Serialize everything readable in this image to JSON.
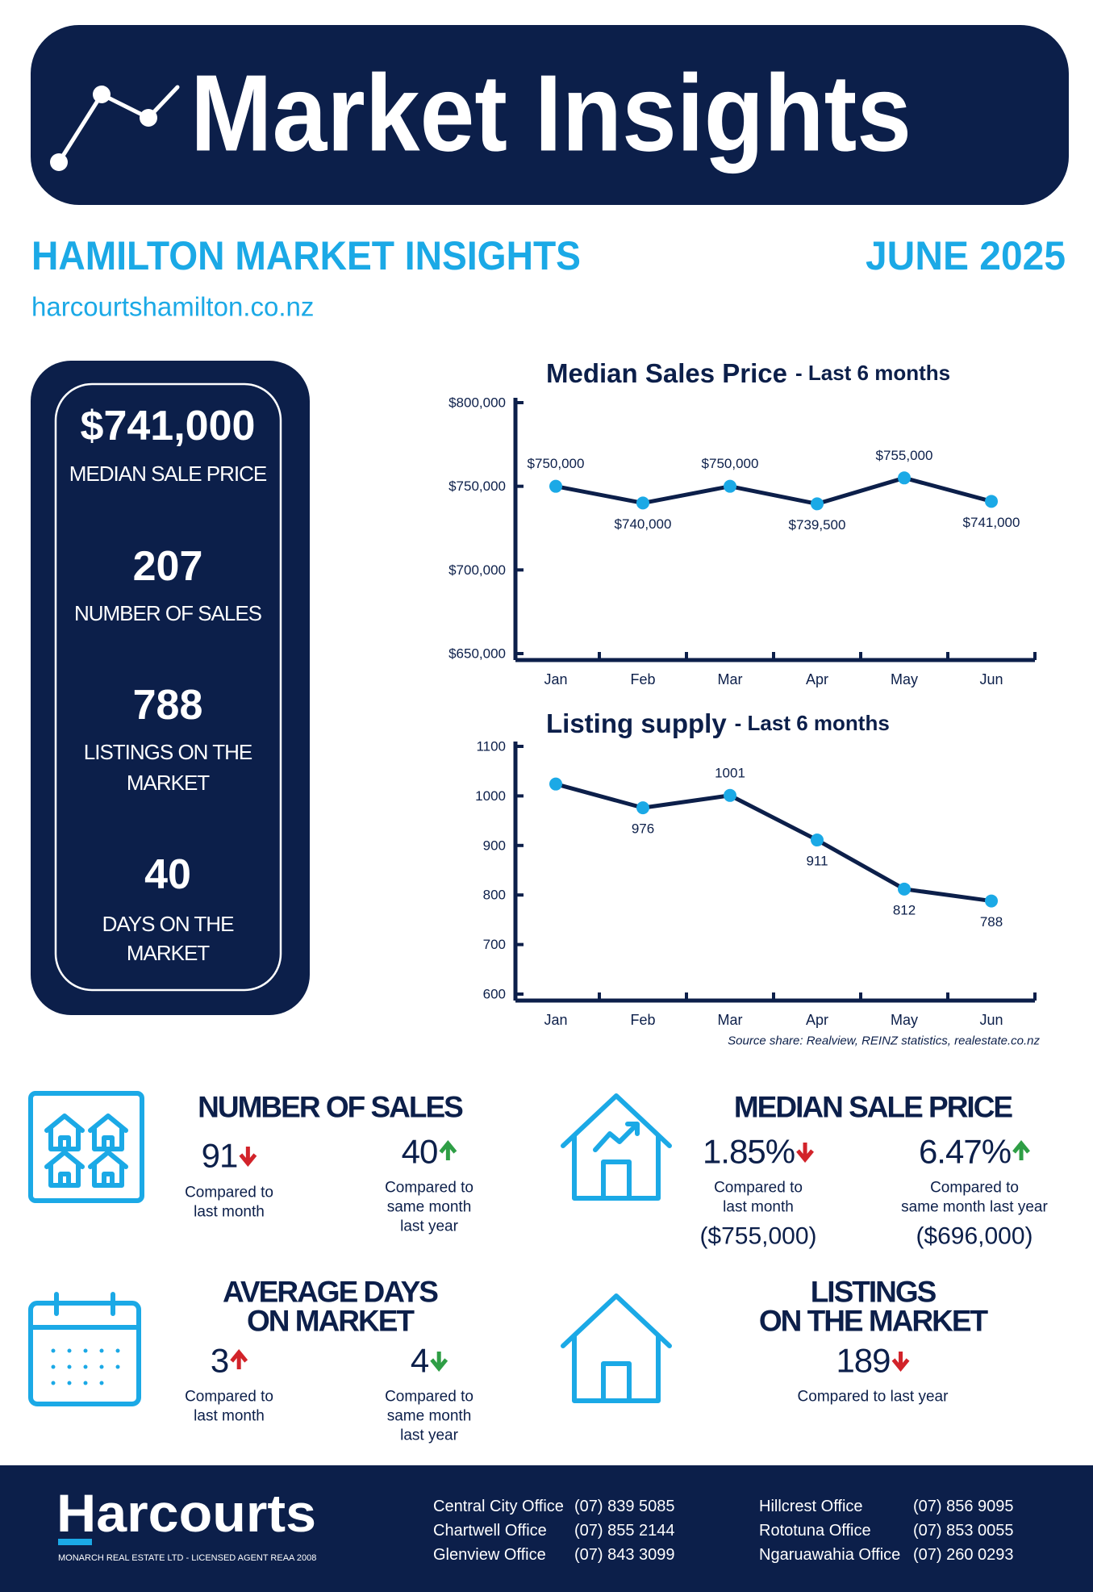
{
  "header": {
    "title": "Market Insights",
    "subtitle": "HAMILTON MARKET INSIGHTS",
    "date": "JUNE 2025",
    "website": "harcourtshamilton.co.nz"
  },
  "summary": [
    {
      "value": "$741,000",
      "label": [
        "MEDIAN SALE PRICE"
      ]
    },
    {
      "value": "207",
      "label": [
        "NUMBER OF SALES"
      ]
    },
    {
      "value": "788",
      "label": [
        "LISTINGS ON THE",
        "MARKET"
      ]
    },
    {
      "value": "40",
      "label": [
        "DAYS ON THE",
        "MARKET"
      ]
    }
  ],
  "chart_data": [
    {
      "type": "line",
      "title": "Median Sales Price",
      "subtitle": "- Last 6 months",
      "categories": [
        "Jan",
        "Feb",
        "Mar",
        "Apr",
        "May",
        "Jun"
      ],
      "values": [
        750000,
        740000,
        750000,
        739500,
        755000,
        741000
      ],
      "value_labels": [
        "$750,000",
        "$740,000",
        "$750,000",
        "$739,500",
        "$755,000",
        "$741,000"
      ],
      "ylim": [
        650000,
        800000
      ],
      "yticks": [
        {
          "value": 650000,
          "label": "$650,000"
        },
        {
          "value": 700000,
          "label": "$700,000"
        },
        {
          "value": 750000,
          "label": "$750,000"
        },
        {
          "value": 800000,
          "label": "$800,000"
        }
      ],
      "color": "#1ba9e6",
      "line_color": "#0c1f4a"
    },
    {
      "type": "line",
      "title": "Listing supply",
      "subtitle": "- Last 6 months",
      "categories": [
        "Jan",
        "Feb",
        "Mar",
        "Apr",
        "May",
        "Jun"
      ],
      "values": [
        1024,
        976,
        1001,
        911,
        812,
        788
      ],
      "value_labels": [
        null,
        "976",
        "1001",
        "911",
        "812",
        "788"
      ],
      "ylim": [
        600,
        1100
      ],
      "yticks": [
        600,
        700,
        800,
        900,
        1000,
        1100
      ],
      "color": "#1ba9e6",
      "line_color": "#0c1f4a"
    }
  ],
  "source": "Source share: Realview, REINZ statistics, realestate.co.nz",
  "stats": [
    {
      "title": [
        "NUMBER OF SALES"
      ],
      "items": [
        {
          "value": "91",
          "arrow": "down",
          "arrow_color": "#d2232a",
          "note": [
            "Compared to",
            "last month"
          ]
        },
        {
          "value": "40",
          "arrow": "up",
          "arrow_color": "#2e9e45",
          "note": [
            "Compared to",
            "same month",
            "last year"
          ]
        }
      ]
    },
    {
      "title": [
        "MEDIAN SALE PRICE"
      ],
      "items": [
        {
          "value": "1.85%",
          "arrow": "down",
          "arrow_color": "#d2232a",
          "note": [
            "Compared to",
            "last month"
          ],
          "sub": "($755,000)"
        },
        {
          "value": "6.47%",
          "arrow": "up",
          "arrow_color": "#2e9e45",
          "note": [
            "Compared to",
            "same month last year"
          ],
          "sub": "($696,000)"
        }
      ]
    },
    {
      "title": [
        "AVERAGE DAYS",
        "ON MARKET"
      ],
      "items": [
        {
          "value": "3",
          "arrow": "up",
          "arrow_color": "#d2232a",
          "note": [
            "Compared to",
            "last month"
          ]
        },
        {
          "value": "4",
          "arrow": "down",
          "arrow_color": "#2e9e45",
          "note": [
            "Compared to",
            "same month",
            "last year"
          ]
        }
      ]
    },
    {
      "title": [
        "LISTINGS",
        "ON THE MARKET"
      ],
      "items": [
        {
          "value": "189",
          "arrow": "down",
          "arrow_color": "#d2232a",
          "note": [
            "Compared to last year"
          ]
        }
      ]
    }
  ],
  "footer": {
    "brand": "Harcourts",
    "licence": "MONARCH REAL ESTATE LTD - LICENSED AGENT REAA 2008",
    "offices": [
      {
        "name": "Central City Office",
        "phone": "(07) 839 5085"
      },
      {
        "name": "Chartwell Office",
        "phone": "(07) 855 2144"
      },
      {
        "name": "Glenview Office",
        "phone": "(07) 843 3099"
      },
      {
        "name": "Hillcrest Office",
        "phone": "(07) 856 9095"
      },
      {
        "name": "Rototuna Office",
        "phone": "(07) 853 0055"
      },
      {
        "name": "Ngaruawahia Office",
        "phone": "(07) 260 0293"
      }
    ]
  }
}
